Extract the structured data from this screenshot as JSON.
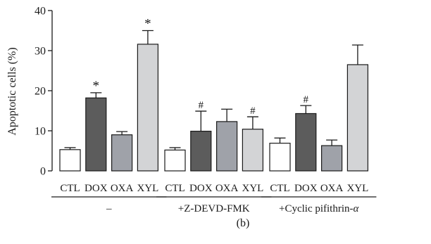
{
  "panel_label": "(b)",
  "chart_data": {
    "type": "bar",
    "ylabel": "Apoptotic cells (%)",
    "xlabel": "",
    "ylim": [
      0,
      40
    ],
    "yticks": [
      0,
      10,
      20,
      30,
      40
    ],
    "grid": false,
    "groups": [
      {
        "label": "–",
        "bars": [
          {
            "category": "CTL",
            "value": 5.3,
            "error": 0.5,
            "color": "#ffffff",
            "marker": ""
          },
          {
            "category": "DOX",
            "value": 18.2,
            "error": 1.3,
            "color": "#5c5c5c",
            "marker": "*"
          },
          {
            "category": "OXA",
            "value": 9.0,
            "error": 0.8,
            "color": "#9fa2a9",
            "marker": ""
          },
          {
            "category": "XYL",
            "value": 31.6,
            "error": 3.4,
            "color": "#d3d4d6",
            "marker": "*"
          }
        ]
      },
      {
        "label": "+Z-DEVD-FMK",
        "bars": [
          {
            "category": "CTL",
            "value": 5.2,
            "error": 0.6,
            "color": "#ffffff",
            "marker": ""
          },
          {
            "category": "DOX",
            "value": 9.9,
            "error": 5.0,
            "color": "#5c5c5c",
            "marker": "#"
          },
          {
            "category": "OXA",
            "value": 12.3,
            "error": 3.1,
            "color": "#9fa2a9",
            "marker": ""
          },
          {
            "category": "XYL",
            "value": 10.4,
            "error": 3.1,
            "color": "#d3d4d6",
            "marker": "#"
          }
        ]
      },
      {
        "label": "+Cyclic pifithrin-α",
        "bars": [
          {
            "category": "CTL",
            "value": 6.9,
            "error": 1.3,
            "color": "#ffffff",
            "marker": ""
          },
          {
            "category": "DOX",
            "value": 14.3,
            "error": 2.0,
            "color": "#5c5c5c",
            "marker": "#"
          },
          {
            "category": "OXA",
            "value": 6.3,
            "error": 1.4,
            "color": "#9fa2a9",
            "marker": ""
          },
          {
            "category": "XYL",
            "value": 26.5,
            "error": 4.9,
            "color": "#d3d4d6",
            "marker": ""
          }
        ]
      }
    ]
  }
}
